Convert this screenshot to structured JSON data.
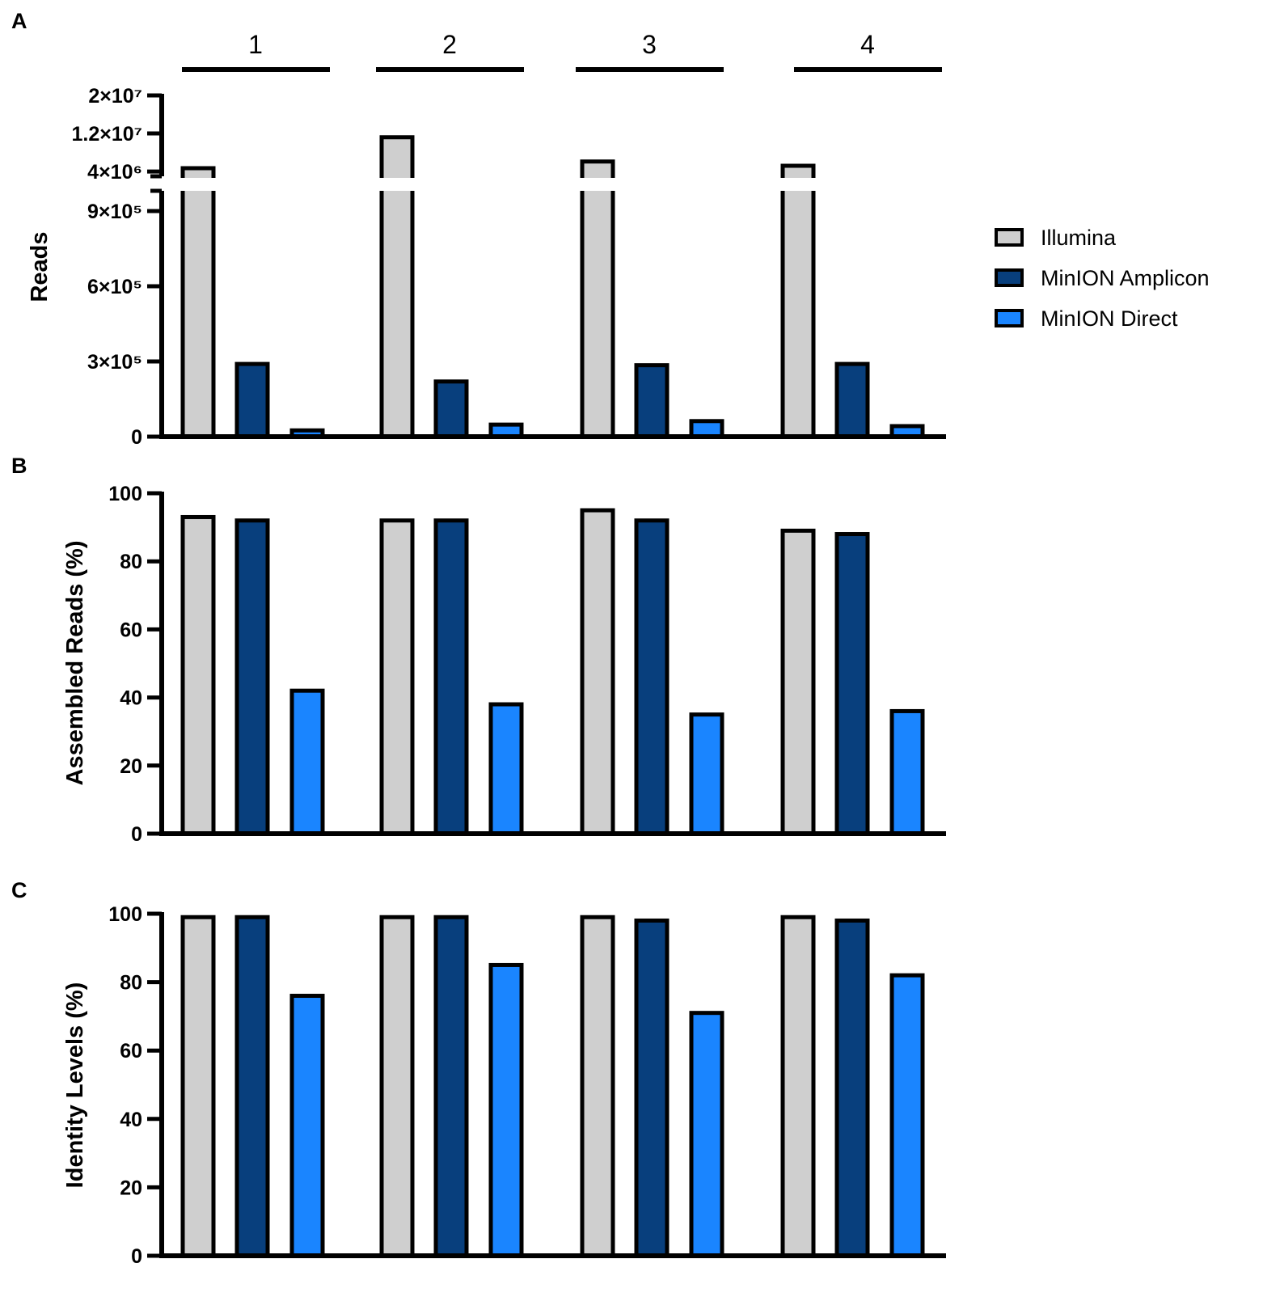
{
  "colors": {
    "Illumina": "#cfcfcf",
    "MinION Amplicon": "#083f7d",
    "MinION Direct": "#1a85ff",
    "outline": "#000000"
  },
  "legend": [
    "Illumina",
    "MinION Amplicon",
    "MinION Direct"
  ],
  "group_labels": [
    "1",
    "2",
    "3",
    "4"
  ],
  "chart_data": [
    {
      "panel": "A",
      "type": "bar",
      "categories": [
        "1",
        "2",
        "3",
        "4"
      ],
      "series": [
        {
          "name": "Illumina",
          "values": [
            4700000,
            11200000,
            6100000,
            5200000
          ]
        },
        {
          "name": "MinION Amplicon",
          "values": [
            290000,
            220000,
            285000,
            290000
          ]
        },
        {
          "name": "MinION Direct",
          "values": [
            25000,
            48000,
            62000,
            42000
          ]
        }
      ],
      "ylabel": "Reads",
      "y_broken": true,
      "ylim_lower": [
        0,
        1000000
      ],
      "ylim_upper": [
        3000000,
        20000000
      ],
      "yticks_lower": [
        {
          "value": 0,
          "label": "0"
        },
        {
          "value": 300000,
          "label": "3×10⁵"
        },
        {
          "value": 600000,
          "label": "6×10⁵"
        },
        {
          "value": 900000,
          "label": "9×10⁵"
        }
      ],
      "yticks_upper": [
        {
          "value": 4000000,
          "label": "4×10⁶"
        },
        {
          "value": 12000000,
          "label": "1.2×10⁷"
        },
        {
          "value": 20000000,
          "label": "2×10⁷"
        }
      ]
    },
    {
      "panel": "B",
      "type": "bar",
      "categories": [
        "1",
        "2",
        "3",
        "4"
      ],
      "series": [
        {
          "name": "Illumina",
          "values": [
            93,
            92,
            95,
            89
          ]
        },
        {
          "name": "MinION Amplicon",
          "values": [
            92,
            92,
            92,
            88
          ]
        },
        {
          "name": "MinION Direct",
          "values": [
            42,
            38,
            35,
            36
          ]
        }
      ],
      "ylabel": "Assembled Reads (%)",
      "ylim": [
        0,
        100
      ],
      "yticks": [
        0,
        20,
        40,
        60,
        80,
        100
      ]
    },
    {
      "panel": "C",
      "type": "bar",
      "categories": [
        "1",
        "2",
        "3",
        "4"
      ],
      "series": [
        {
          "name": "Illumina",
          "values": [
            99,
            99,
            99,
            99
          ]
        },
        {
          "name": "MinION Amplicon",
          "values": [
            99,
            99,
            98,
            98
          ]
        },
        {
          "name": "MinION Direct",
          "values": [
            76,
            85,
            71,
            82
          ]
        }
      ],
      "ylabel": "Identity Levels (%)",
      "ylim": [
        0,
        100
      ],
      "yticks": [
        0,
        20,
        40,
        60,
        80,
        100
      ]
    }
  ]
}
